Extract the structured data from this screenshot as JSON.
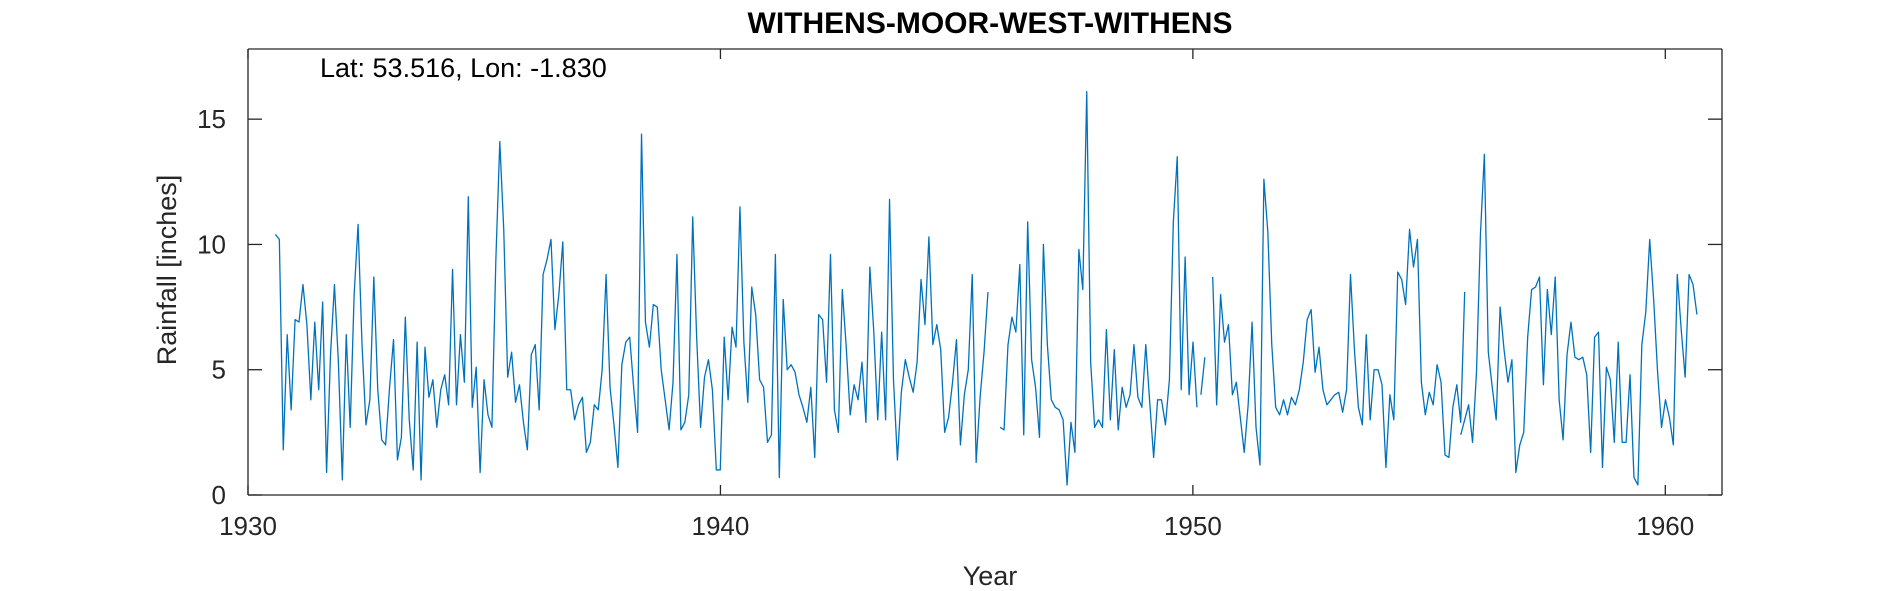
{
  "chart_data": {
    "type": "line",
    "title": "WITHENS-MOOR-WEST-WITHENS",
    "annotation": "Lat: 53.516, Lon: -1.830",
    "xlabel": "Year",
    "ylabel": "Rainfall [inches]",
    "xlim": [
      1930,
      1961.2
    ],
    "ylim": [
      0,
      17.8
    ],
    "xticks": [
      1930,
      1940,
      1950,
      1960
    ],
    "yticks": [
      0,
      5,
      10,
      15
    ],
    "grid": false,
    "line_color": "#0072BD",
    "series": [
      {
        "start_year": 1930.58,
        "step": 0.08333,
        "values": [
          10.4,
          10.2,
          1.8,
          6.4,
          3.4,
          7.0,
          6.9,
          8.4,
          6.8,
          3.8,
          6.9,
          4.2,
          7.7,
          0.9,
          5.6,
          8.4,
          5.3,
          0.6,
          6.4,
          2.7,
          8.0,
          10.8,
          6.0,
          2.8,
          3.8,
          8.7,
          4.2,
          2.2,
          2.0,
          4.3,
          6.2,
          1.4,
          2.3,
          7.1,
          3.0,
          1.0,
          6.1,
          0.6,
          5.9,
          3.9,
          4.6,
          2.7,
          4.2,
          4.8,
          3.6,
          9.0,
          3.6,
          6.4,
          4.5,
          11.9,
          3.5,
          5.1,
          0.9,
          4.6,
          3.2,
          2.7,
          9.4,
          14.1,
          10.6,
          4.7,
          5.7,
          3.7,
          4.4,
          2.9,
          1.8,
          5.6,
          6.0,
          3.4,
          8.8,
          9.4,
          10.2,
          6.6,
          8.0,
          10.1,
          4.2,
          4.2,
          3.0,
          3.6,
          3.9,
          1.7,
          2.1,
          3.6,
          3.4,
          5.0,
          8.8,
          4.3,
          2.8,
          1.1,
          5.2,
          6.1,
          6.3,
          4.3,
          2.5,
          14.4,
          6.9,
          5.9,
          7.6,
          7.5,
          5.0,
          3.8,
          2.6,
          4.5,
          9.6,
          2.6,
          2.9,
          4.0,
          11.1,
          6.3,
          2.7,
          4.7,
          5.4,
          4.2,
          1.0,
          1.0,
          6.3,
          3.8,
          6.7,
          5.9,
          11.5,
          6.1,
          3.7,
          8.3,
          7.2,
          4.6,
          4.3,
          2.1,
          2.4,
          9.6,
          0.7,
          7.8,
          5.0,
          5.2,
          4.9,
          4.0,
          3.5,
          2.9,
          4.3,
          1.5,
          7.2,
          7.0,
          4.5,
          9.6,
          3.4,
          2.5,
          8.2,
          5.9,
          3.2,
          4.4,
          3.8,
          5.3,
          2.9,
          9.1,
          6.5,
          3.0,
          6.5,
          3.0,
          11.8,
          4.6,
          1.4,
          4.1,
          5.4,
          4.7,
          4.1,
          5.3,
          8.6,
          6.8,
          10.3,
          6.0,
          6.8,
          5.8,
          2.5,
          3.1,
          4.5,
          6.2,
          2.0,
          4.0,
          5.0,
          8.8,
          1.3,
          3.9,
          5.7,
          8.1
        ],
        "segment_index": 0
      },
      {
        "start_year": 1945.92,
        "step": 0.08333,
        "values": [
          2.7,
          2.6,
          6.0,
          7.1,
          6.5,
          9.2,
          2.4,
          10.9,
          5.4,
          4.3,
          2.3,
          10.0,
          6.0,
          3.8,
          3.5,
          3.4,
          3.0,
          0.4,
          2.9,
          1.7,
          9.8,
          8.2,
          16.1,
          5.3,
          2.7,
          3.0,
          2.7,
          6.6,
          3.0,
          5.8,
          2.6,
          4.3,
          3.5,
          4.0,
          6.0,
          3.9,
          3.5,
          6.0,
          3.7,
          1.5,
          3.8,
          3.8,
          2.8,
          4.6,
          10.9,
          13.5,
          4.2,
          9.5,
          4.0,
          6.1,
          3.5
        ],
        "segment_index": 1
      },
      {
        "start_year": 1950.17,
        "step": 0.08333,
        "values": [
          4.0,
          5.5
        ],
        "segment_index": 2
      },
      {
        "start_year": 1950.42,
        "step": 0.08333,
        "values": [
          8.7,
          3.6,
          8.0,
          6.1,
          6.8,
          4.0,
          4.5,
          3.1,
          1.7,
          3.6,
          6.9,
          2.7,
          1.2,
          12.6,
          10.5,
          6.0,
          3.5,
          3.2,
          3.8,
          3.2,
          3.9,
          3.6,
          4.2,
          5.3,
          7.0,
          7.4,
          4.9,
          5.9,
          4.2,
          3.6,
          3.8,
          4.0,
          4.1,
          3.3,
          4.2,
          8.8,
          5.8,
          3.5,
          2.8,
          6.4,
          3.0,
          5.0,
          5.0,
          4.4,
          1.1,
          4.0,
          3.0,
          8.9,
          8.6,
          7.6,
          10.6,
          9.1,
          10.2,
          4.5,
          3.2,
          4.1,
          3.6,
          5.2,
          4.5,
          1.6,
          1.5,
          3.5,
          4.4,
          2.9,
          8.1
        ],
        "segment_index": 3
      },
      {
        "start_year": 1955.67,
        "step": 0.08333,
        "values": [
          2.4,
          3.0,
          3.6,
          2.1,
          4.9,
          10.4,
          13.6,
          5.7,
          4.3,
          3.0,
          7.5,
          5.8,
          4.5,
          5.4,
          0.9,
          2.0,
          2.5,
          6.3,
          8.2,
          8.3,
          8.7,
          4.4,
          8.2,
          6.4,
          8.7,
          3.8,
          2.2,
          5.6,
          6.9,
          5.5,
          5.4,
          5.5,
          4.8,
          1.7,
          6.3,
          6.5,
          1.1,
          5.1,
          4.6,
          2.1,
          6.1,
          2.1,
          2.1,
          4.8,
          0.7,
          0.4,
          6.0,
          7.3,
          10.2,
          7.8,
          4.9,
          2.7,
          3.8,
          3.1,
          2.0,
          8.8,
          6.6,
          4.7,
          8.8,
          8.4,
          7.2
        ],
        "segment_index": 4
      }
    ]
  }
}
